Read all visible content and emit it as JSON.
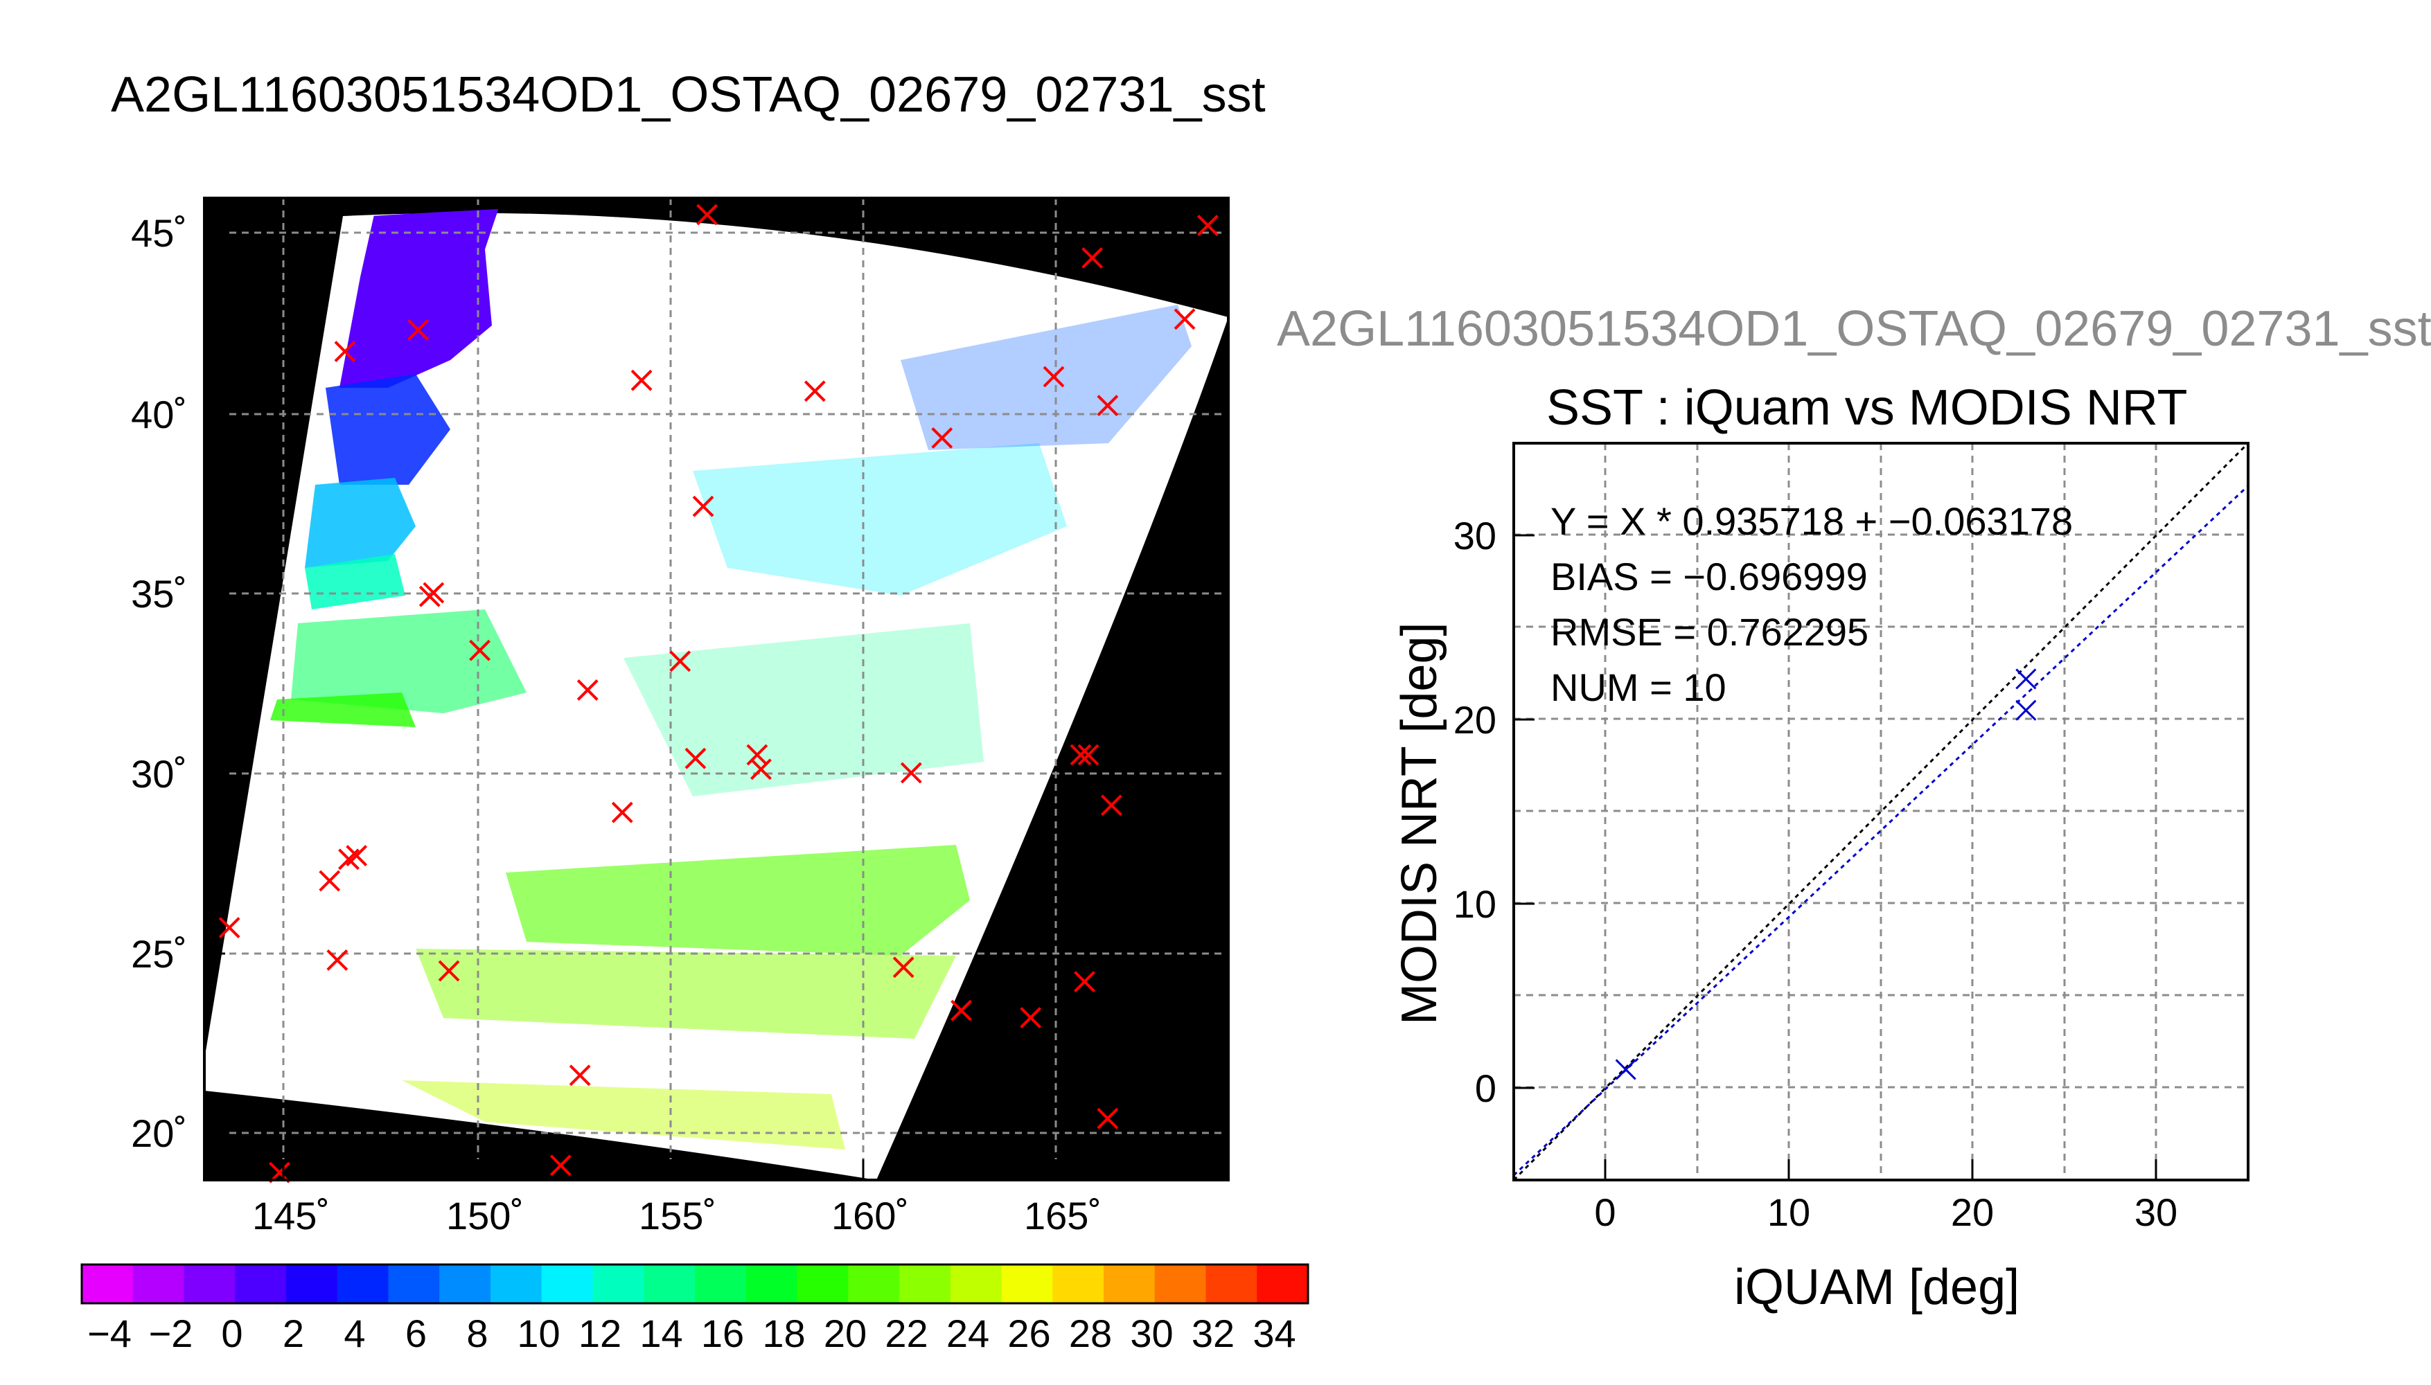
{
  "title": "A2GL11603051534OD1_OSTAQ_02679_02731_sst",
  "ghost_title": "A2GL11603051534OD1_OSTAQ_02679_02731_sst",
  "colors": {
    "background": "#ffffff",
    "masked": "#000000",
    "grid": "#8c8c8c",
    "match_marker": "#ff0000",
    "scatter_marker": "#0000cc",
    "identity_line": "#000000",
    "fit_line": "#0000cc"
  },
  "map": {
    "lon_ticks": [
      "145˚",
      "150˚",
      "155˚",
      "160˚",
      "165˚"
    ],
    "lat_ticks": [
      "20˚",
      "25˚",
      "30˚",
      "35˚",
      "40˚",
      "45˚"
    ]
  },
  "colorbar": {
    "ticks": [
      "−4",
      "−2",
      "0",
      "2",
      "4",
      "6",
      "8",
      "10",
      "12",
      "14",
      "16",
      "18",
      "20",
      "22",
      "24",
      "26",
      "28",
      "30",
      "32",
      "34"
    ],
    "palette": [
      "#e600ff",
      "#b300ff",
      "#8000ff",
      "#4d00ff",
      "#1a00ff",
      "#0026ff",
      "#0059ff",
      "#008cff",
      "#00bfff",
      "#00f2ff",
      "#00ffbf",
      "#00ff8c",
      "#00ff59",
      "#00ff26",
      "#26ff00",
      "#59ff00",
      "#8cff00",
      "#bfff00",
      "#f2ff00",
      "#ffd900",
      "#ffa600",
      "#ff7300",
      "#ff4000",
      "#ff0d00"
    ]
  },
  "scatter_title": "SST : iQuam vs MODIS NRT",
  "stats": {
    "equation": "Y = X * 0.935718 + −0.063178",
    "bias": "BIAS = −0.696999",
    "rmse": "RMSE = 0.762295",
    "num": "NUM = 10"
  },
  "chart_data": [
    {
      "type": "scatter",
      "title": "A2GL11603051534OD1_OSTAQ_02679_02731_sst",
      "xlabel": "",
      "ylabel": "",
      "xlim": [
        143,
        169.5
      ],
      "ylim": [
        18.8,
        46.5
      ],
      "series": [
        {
          "values": [
            [
              156,
              45.5
            ],
            [
              169,
              45.2
            ],
            [
              166,
              44.3
            ],
            [
              168.4,
              42.6
            ],
            [
              148.5,
              42.3
            ],
            [
              146.6,
              41.7
            ],
            [
              165,
              41
            ],
            [
              154.3,
              40.9
            ],
            [
              158.8,
              40.6
            ],
            [
              166.4,
              40.2
            ],
            [
              162.1,
              39.3
            ],
            [
              155.9,
              37.4
            ],
            [
              148.8,
              34.9
            ],
            [
              148.9,
              35
            ],
            [
              150.1,
              33.4
            ],
            [
              155.3,
              33.1
            ],
            [
              152.9,
              32.3
            ],
            [
              157.3,
              30.5
            ],
            [
              157.4,
              30.1
            ],
            [
              155.7,
              30.4
            ],
            [
              161.3,
              30
            ],
            [
              165.9,
              30.5
            ],
            [
              165.7,
              30.5
            ],
            [
              166.5,
              29.1
            ],
            [
              153.8,
              28.9
            ],
            [
              146.7,
              27.6
            ],
            [
              146.9,
              27.7
            ],
            [
              146.2,
              27
            ],
            [
              143.6,
              25.7
            ],
            [
              146.4,
              24.8
            ],
            [
              149.3,
              24.5
            ],
            [
              161.1,
              24.6
            ],
            [
              165.8,
              24.2
            ],
            [
              162.6,
              23.4
            ],
            [
              164.4,
              23.2
            ],
            [
              152.7,
              21.6
            ],
            [
              166.4,
              20.4
            ],
            [
              144.9,
              18.9
            ],
            [
              152.2,
              19.1
            ]
          ]
        }
      ]
    },
    {
      "type": "scatter",
      "title": "SST : iQuam vs MODIS NRT",
      "xlabel": "iQUAM [deg]",
      "ylabel": "MODIS NRT [deg]",
      "xlim": [
        -5,
        35
      ],
      "ylim": [
        -5,
        35
      ],
      "xticks": [
        "0",
        "10",
        "20",
        "30"
      ],
      "yticks": [
        "0",
        "10",
        "20",
        "30"
      ],
      "grid": true,
      "series": [
        {
          "values": [
            [
              1.1,
              1.0
            ],
            [
              22.9,
              22.2
            ],
            [
              22.9,
              20.5
            ]
          ]
        }
      ],
      "reference_lines": [
        {
          "slope": 1,
          "intercept": 0,
          "style": "dotted"
        },
        {
          "slope": 0.935718,
          "intercept": -0.063178,
          "style": "dotted"
        }
      ]
    }
  ]
}
